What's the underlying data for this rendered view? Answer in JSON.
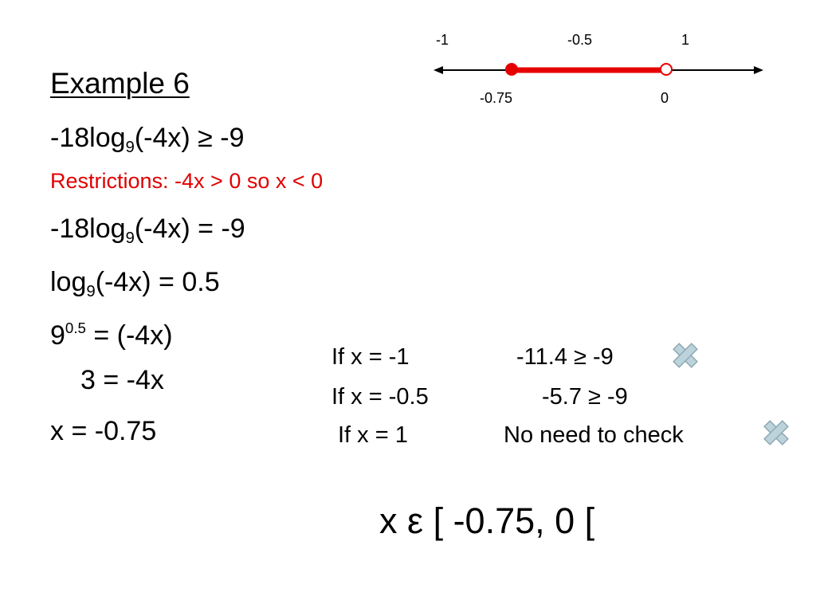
{
  "title": "Example 6",
  "steps": {
    "inequality": {
      "prefix": "-18log",
      "base": "9",
      "rest": "(-4x) ≥ -9"
    },
    "restrictions": "Restrictions: -4x > 0 so x < 0",
    "equation": {
      "prefix": "-18log",
      "base": "9",
      "rest": "(-4x) = -9"
    },
    "log_form": {
      "prefix": "log",
      "base": "9",
      "rest": "(-4x) = 0.5"
    },
    "exp_form": {
      "base": "9",
      "exponent": "0.5",
      "rest": " = (-4x)"
    },
    "simplified": "3 = -4x",
    "solution": "x = -0.75"
  },
  "number_line": {
    "top_labels": [
      "-1",
      "-0.5",
      "1"
    ],
    "bottom_labels": [
      "-0.75",
      "0"
    ],
    "interval": {
      "from": -0.75,
      "to": 0,
      "left_closed": true,
      "right_closed": false
    },
    "color": "#e60000"
  },
  "checks": [
    {
      "test": "If x = -1",
      "result": "-11.4 ≥ -9",
      "icon": "cross-icon"
    },
    {
      "test": "If x = -0.5",
      "result": "-5.7 ≥ -9",
      "icon": null
    },
    {
      "test": "If x = 1",
      "result": "No need to check",
      "icon": "cross-icon"
    }
  ],
  "answer": "x ε [ -0.75, 0 ["
}
